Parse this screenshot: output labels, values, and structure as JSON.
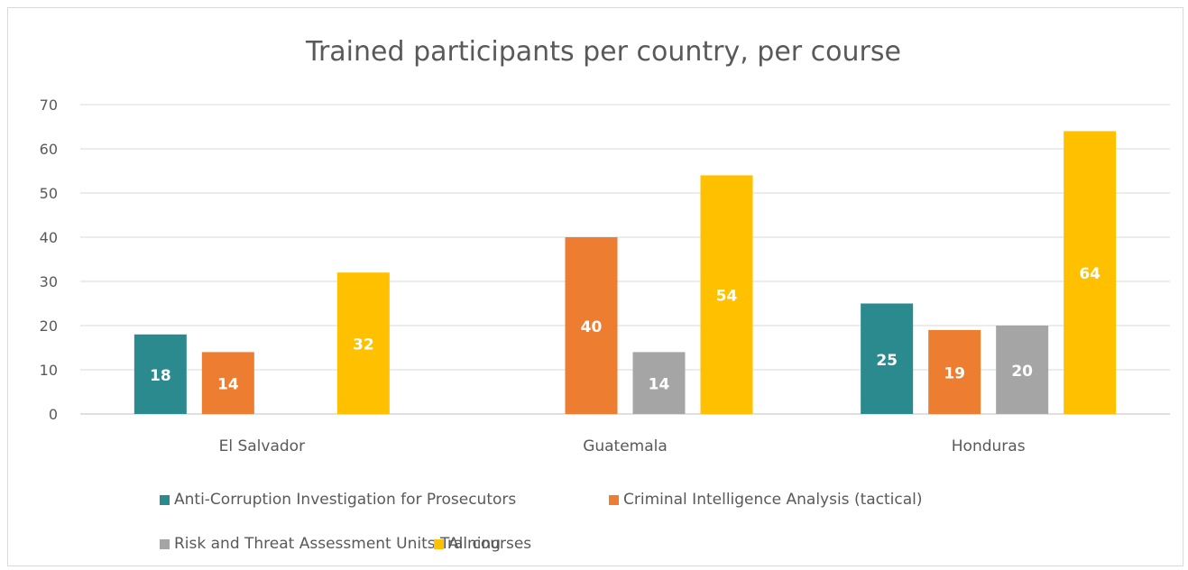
{
  "chart_data": {
    "type": "bar",
    "title": "Trained participants per country, per course",
    "xlabel": "",
    "ylabel": "",
    "ylim": [
      0,
      70
    ],
    "yticks": [
      "0",
      "10",
      "20",
      "30",
      "40",
      "50",
      "60",
      "70"
    ],
    "grid": true,
    "legend_position": "bottom",
    "categories": [
      "El Salvador",
      "Guatemala",
      "Honduras"
    ],
    "series": [
      {
        "name": "Anti-Corruption Investigation for Prosecutors",
        "color": "#2a8a8e",
        "values": [
          18,
          null,
          25
        ],
        "labels": [
          "18",
          "",
          "25"
        ]
      },
      {
        "name": "Criminal Intelligence Analysis (tactical)",
        "color": "#ed7d31",
        "values": [
          14,
          40,
          19
        ],
        "labels": [
          "14",
          "40",
          "19"
        ]
      },
      {
        "name": "Risk and Threat Assessment Units Training",
        "color": "#a5a5a5",
        "values": [
          null,
          14,
          20
        ],
        "labels": [
          "",
          "14",
          "20"
        ]
      },
      {
        "name": "All courses",
        "color": "#ffc000",
        "values": [
          32,
          54,
          64
        ],
        "labels": [
          "32",
          "54",
          "64"
        ]
      }
    ]
  }
}
